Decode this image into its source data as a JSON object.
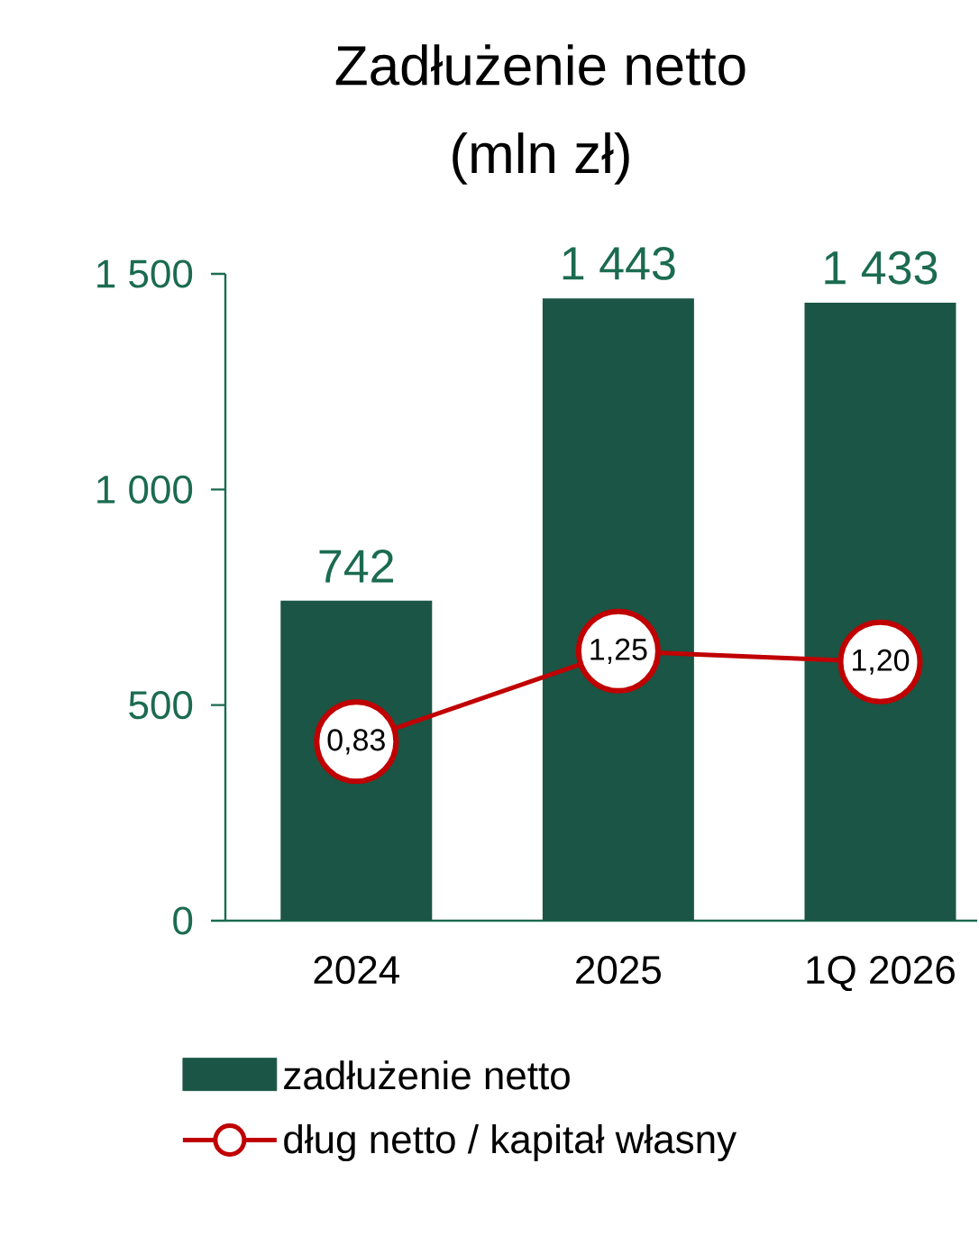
{
  "chart_data": {
    "type": "bar",
    "title": "Zadłużenie netto",
    "subtitle": "(mln zł)",
    "categories": [
      "2024",
      "2025",
      "1Q 2026"
    ],
    "series": [
      {
        "name": "zadłużenie netto",
        "color": "#1b5545",
        "values": [
          742,
          1443,
          1433
        ],
        "value_labels": [
          "742",
          "1 443",
          "1 433"
        ]
      },
      {
        "type": "line",
        "axis": "y2",
        "name": "dług netto / kapitał własny",
        "color": "#c00000",
        "marker": "circle",
        "values": [
          0.83,
          1.25,
          1.2
        ],
        "value_labels": [
          "0,83",
          "1,25",
          "1,20"
        ]
      }
    ],
    "ylim": [
      0,
      1500
    ],
    "yticks": [
      0,
      {
        "value": 500,
        "label": "500"
      },
      {
        "value": 1000,
        "label": "1 000"
      },
      {
        "value": 1500,
        "label": "1 500"
      }
    ],
    "y2lim": [
      0,
      3
    ],
    "grid": false,
    "legend": "bottom"
  }
}
